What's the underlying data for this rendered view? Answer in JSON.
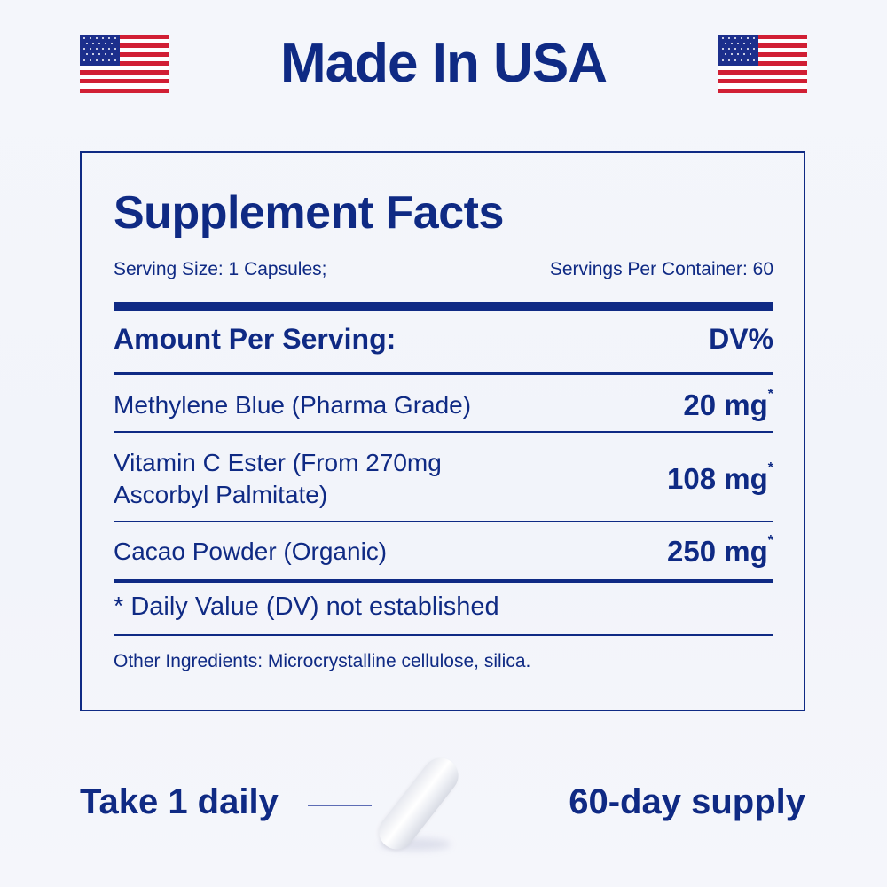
{
  "header": {
    "title": "Made In USA",
    "flag_icon": "us-flag-icon"
  },
  "facts": {
    "title": "Supplement Facts",
    "serving_size": "Serving Size: 1 Capsules;",
    "servings_per_container": "Servings Per Container: 60",
    "amount_header": "Amount Per Serving:",
    "dv_header": "DV%",
    "ingredients": [
      {
        "name": "Methylene Blue (Pharma Grade)",
        "amount": "20 mg",
        "mark": "*"
      },
      {
        "name": "Vitamin C Ester (From 270mg Ascorbyl Palmitate)",
        "amount": "108 mg",
        "mark": "*"
      },
      {
        "name": "Cacao Powder (Organic)",
        "amount": "250 mg",
        "mark": "*"
      }
    ],
    "footnote": "* Daily Value (DV) not established",
    "other_ingredients": "Other Ingredients: Microcrystalline cellulose, silica."
  },
  "footer": {
    "dosage": "Take 1 daily",
    "supply": "60-day supply"
  },
  "colors": {
    "navy": "#0f2a84",
    "flag_red": "#d11f34",
    "flag_blue": "#1c2f8c"
  }
}
